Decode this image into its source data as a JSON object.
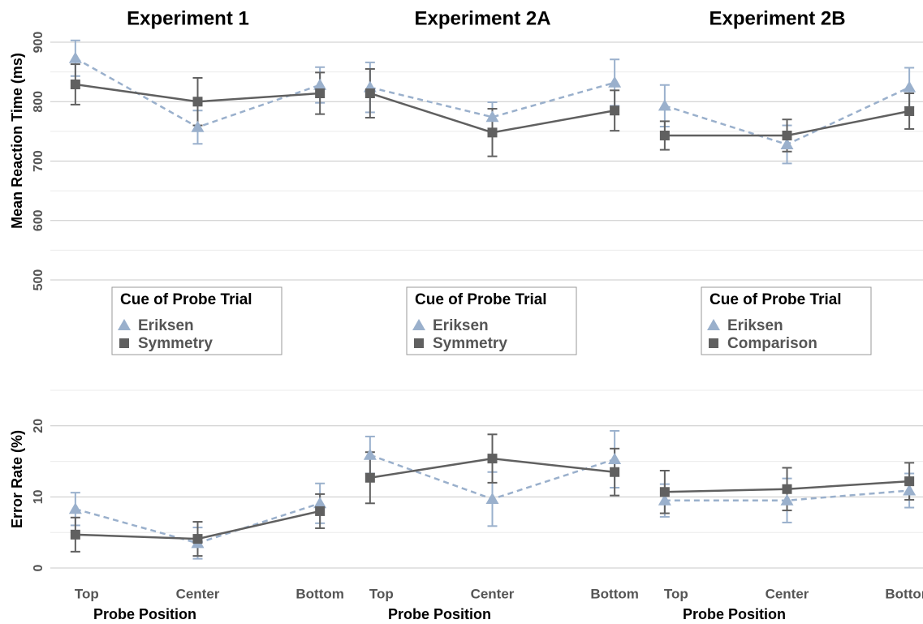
{
  "chart_data": [
    {
      "type": "line",
      "title": "Experiment 1",
      "ylabel": "Mean Reaction Time (ms)",
      "ylim": [
        500,
        900
      ],
      "yticks": [
        500,
        600,
        700,
        800,
        900
      ],
      "grid": true,
      "legend": {
        "title": "Cue of Probe Trial",
        "position": "below"
      },
      "series": [
        {
          "name": "Eriksen",
          "color": "#9ab0cc",
          "marker": "triangle",
          "line_style": "dashed",
          "values": [
            873,
            757,
            828
          ],
          "errors": [
            30,
            28,
            30
          ]
        },
        {
          "name": "Symmetry",
          "color": "#606060",
          "marker": "square",
          "line_style": "solid",
          "values": [
            829,
            800,
            814
          ],
          "errors": [
            34,
            40,
            35
          ]
        }
      ]
    },
    {
      "type": "line",
      "title": "Experiment 2A",
      "legend": {
        "title": "Cue of Probe Trial",
        "position": "below"
      },
      "series": [
        {
          "name": "Eriksen",
          "color": "#9ab0cc",
          "marker": "triangle",
          "line_style": "dashed",
          "values": [
            824,
            774,
            832
          ],
          "errors": [
            42,
            25,
            39
          ]
        },
        {
          "name": "Symmetry",
          "color": "#606060",
          "marker": "square",
          "line_style": "solid",
          "values": [
            814,
            748,
            785
          ],
          "errors": [
            41,
            40,
            34
          ]
        }
      ]
    },
    {
      "type": "line",
      "title": "Experiment 2B",
      "legend": {
        "title": "Cue of Probe Trial",
        "position": "below"
      },
      "series": [
        {
          "name": "Eriksen",
          "color": "#9ab0cc",
          "marker": "triangle",
          "line_style": "dashed",
          "values": [
            793,
            728,
            824
          ],
          "errors": [
            35,
            32,
            33
          ]
        },
        {
          "name": "Comparison",
          "color": "#606060",
          "marker": "square",
          "line_style": "solid",
          "values": [
            743,
            743,
            784
          ],
          "errors": [
            24,
            27,
            30
          ]
        }
      ]
    },
    {
      "type": "line",
      "ylabel": "Error Rate (%)",
      "xlabel": "Probe Position",
      "categories": [
        "Top",
        "Center",
        "Bottom"
      ],
      "ylim": [
        0,
        25
      ],
      "yticks": [
        0,
        10,
        20
      ],
      "grid": true,
      "series": [
        {
          "color": "#9ab0cc",
          "marker": "triangle",
          "line_style": "dashed",
          "values": [
            8.3,
            3.5,
            9.1
          ],
          "errors": [
            2.3,
            2.2,
            2.8
          ]
        },
        {
          "color": "#606060",
          "marker": "square",
          "line_style": "solid",
          "values": [
            4.7,
            4.1,
            8.0
          ],
          "errors": [
            2.4,
            2.4,
            2.4
          ]
        }
      ]
    },
    {
      "type": "line",
      "xlabel": "Probe Position",
      "categories": [
        "Top",
        "Center",
        "Bottom"
      ],
      "series": [
        {
          "color": "#9ab0cc",
          "marker": "triangle",
          "line_style": "dashed",
          "values": [
            15.9,
            9.7,
            15.3
          ],
          "errors": [
            2.6,
            3.8,
            4.0
          ]
        },
        {
          "color": "#606060",
          "marker": "square",
          "line_style": "solid",
          "values": [
            12.7,
            15.4,
            13.5
          ],
          "errors": [
            3.6,
            3.4,
            3.3
          ]
        }
      ]
    },
    {
      "type": "line",
      "xlabel": "Probe Position",
      "categories": [
        "Top",
        "Center",
        "Bottom"
      ],
      "series": [
        {
          "color": "#9ab0cc",
          "marker": "triangle",
          "line_style": "dashed",
          "values": [
            9.5,
            9.5,
            10.9
          ],
          "errors": [
            2.3,
            3.1,
            2.4
          ]
        },
        {
          "color": "#606060",
          "marker": "square",
          "line_style": "solid",
          "values": [
            10.7,
            11.1,
            12.2
          ],
          "errors": [
            3.0,
            3.0,
            2.6
          ]
        }
      ]
    }
  ]
}
